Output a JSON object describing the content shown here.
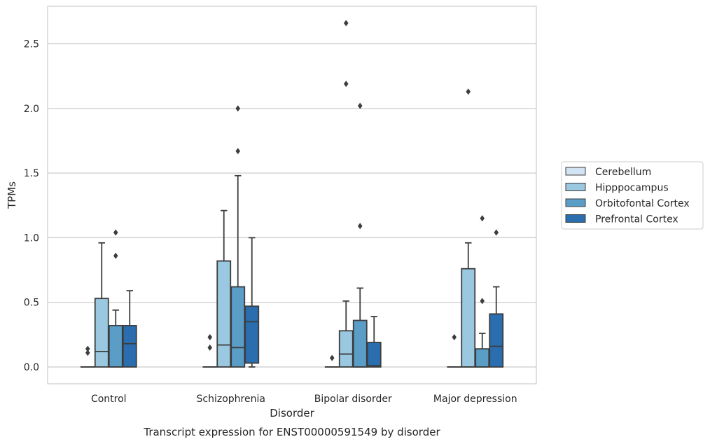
{
  "chart_data": {
    "type": "box",
    "caption": "Transcript expression for ENST00000591549 by disorder",
    "xlabel": "Disorder",
    "ylabel": "TPMs",
    "ylim": [
      -0.13,
      2.79
    ],
    "yticks": [
      0.0,
      0.5,
      1.0,
      1.5,
      2.0,
      2.5
    ],
    "ytick_labels": [
      "0.0",
      "0.5",
      "1.0",
      "1.5",
      "2.0",
      "2.5"
    ],
    "grid": "horizontal",
    "legend_position": "right",
    "categories": [
      "Control",
      "Schizophrenia",
      "Bipolar disorder",
      "Major depression"
    ],
    "series": [
      {
        "name": "Cerebellum",
        "color": "#d2e3f3",
        "boxes": [
          {
            "q1": 0.0,
            "median": 0.0,
            "q3": 0.0,
            "whisker_low": 0.0,
            "whisker_high": 0.0,
            "outliers": [
              0.11,
              0.14
            ]
          },
          {
            "q1": 0.0,
            "median": 0.0,
            "q3": 0.0,
            "whisker_low": 0.0,
            "whisker_high": 0.0,
            "outliers": [
              0.15,
              0.23
            ]
          },
          {
            "q1": 0.0,
            "median": 0.0,
            "q3": 0.0,
            "whisker_low": 0.0,
            "whisker_high": 0.0,
            "outliers": [
              0.07
            ]
          },
          {
            "q1": 0.0,
            "median": 0.0,
            "q3": 0.0,
            "whisker_low": 0.0,
            "whisker_high": 0.0,
            "outliers": [
              0.23
            ]
          }
        ]
      },
      {
        "name": "Hipppocampus",
        "color": "#9ac8e0",
        "boxes": [
          {
            "q1": 0.0,
            "median": 0.12,
            "q3": 0.53,
            "whisker_low": 0.0,
            "whisker_high": 0.96,
            "outliers": []
          },
          {
            "q1": 0.0,
            "median": 0.17,
            "q3": 0.82,
            "whisker_low": 0.0,
            "whisker_high": 1.21,
            "outliers": []
          },
          {
            "q1": 0.0,
            "median": 0.1,
            "q3": 0.28,
            "whisker_low": 0.0,
            "whisker_high": 0.51,
            "outliers": [
              2.19,
              2.66
            ]
          },
          {
            "q1": 0.0,
            "median": 0.0,
            "q3": 0.76,
            "whisker_low": 0.0,
            "whisker_high": 0.96,
            "outliers": [
              2.13
            ]
          }
        ]
      },
      {
        "name": "Orbitofontal Cortex",
        "color": "#5a9ec8",
        "boxes": [
          {
            "q1": 0.0,
            "median": 0.0,
            "q3": 0.32,
            "whisker_low": 0.0,
            "whisker_high": 0.44,
            "outliers": [
              0.86,
              1.04
            ]
          },
          {
            "q1": 0.0,
            "median": 0.15,
            "q3": 0.62,
            "whisker_low": 0.0,
            "whisker_high": 1.48,
            "outliers": [
              1.67,
              2.0
            ]
          },
          {
            "q1": 0.0,
            "median": 0.0,
            "q3": 0.36,
            "whisker_low": 0.0,
            "whisker_high": 0.61,
            "outliers": [
              1.09,
              2.02
            ]
          },
          {
            "q1": 0.0,
            "median": 0.0,
            "q3": 0.14,
            "whisker_low": 0.0,
            "whisker_high": 0.26,
            "outliers": [
              0.51,
              1.15
            ]
          }
        ]
      },
      {
        "name": "Prefrontal Cortex",
        "color": "#2a6eb0",
        "boxes": [
          {
            "q1": 0.0,
            "median": 0.18,
            "q3": 0.32,
            "whisker_low": 0.0,
            "whisker_high": 0.59,
            "outliers": []
          },
          {
            "q1": 0.03,
            "median": 0.35,
            "q3": 0.47,
            "whisker_low": 0.0,
            "whisker_high": 1.0,
            "outliers": []
          },
          {
            "q1": 0.0,
            "median": 0.01,
            "q3": 0.19,
            "whisker_low": 0.0,
            "whisker_high": 0.39,
            "outliers": []
          },
          {
            "q1": 0.0,
            "median": 0.16,
            "q3": 0.41,
            "whisker_low": 0.0,
            "whisker_high": 0.62,
            "outliers": [
              1.04
            ]
          }
        ]
      }
    ]
  }
}
